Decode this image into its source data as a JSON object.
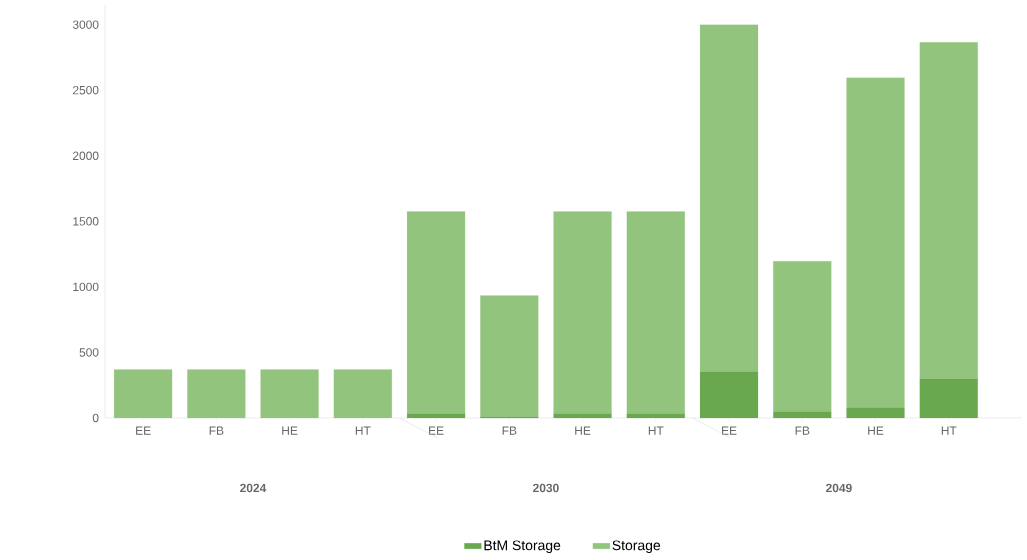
{
  "chart_data": {
    "type": "bar",
    "stacked": true,
    "categories": [
      "EE",
      "FB",
      "HE",
      "HT",
      "EE",
      "FB",
      "HE",
      "HT",
      "EE",
      "FB",
      "HE",
      "HT"
    ],
    "series": [
      {
        "name": "BtM Storage",
        "color": "#6aa84f",
        "values": [
          0,
          0,
          0,
          0,
          30,
          10,
          35,
          35,
          350,
          50,
          80,
          300
        ]
      },
      {
        "name": "Storage",
        "color": "#93c47d",
        "values": [
          370,
          370,
          370,
          370,
          1545,
          925,
          1540,
          1540,
          2650,
          1145,
          2515,
          2565
        ]
      }
    ],
    "ylim": [
      0,
      3150
    ],
    "yticks": [
      0,
      500,
      1000,
      1500,
      2000,
      2500,
      3000
    ],
    "grid": false,
    "legend": "bottom",
    "annotations": [
      "2024",
      "2030",
      "2049"
    ]
  }
}
